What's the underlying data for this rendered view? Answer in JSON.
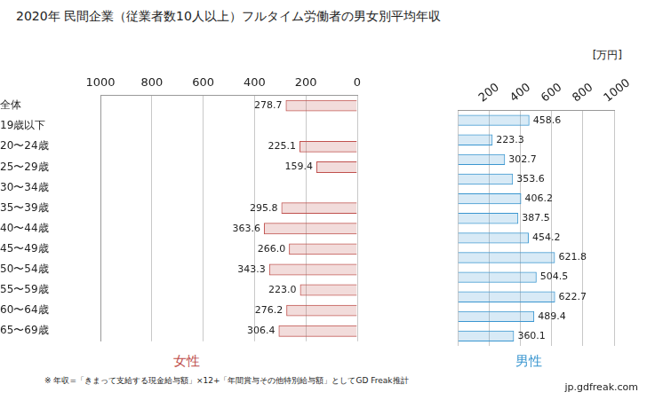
{
  "chart_data": {
    "type": "bar",
    "orientation": "horizontal",
    "title": "2020年 民間企業（従業者数10人以上）フルタイム労働者の男女別平均年収",
    "unit": "[万円]",
    "annotations": [
      "※ 年収=「きまって支給する現金給与額」×12+「年間賞与その他特別給与額」としてGD Freak推計",
      "jp.gdfreak.com"
    ],
    "categories": [
      "全体",
      "19歳以下",
      "20〜24歳",
      "25〜29歳",
      "30〜34歳",
      "35〜39歳",
      "40〜44歳",
      "45〜49歳",
      "50〜54歳",
      "55〜59歳",
      "60〜64歳",
      "65〜69歳"
    ],
    "series": [
      {
        "name": "女性",
        "color": "#c0504d",
        "values": [
          278.7,
          null,
          225.1,
          159.4,
          null,
          295.8,
          363.6,
          266.0,
          343.3,
          223.0,
          276.2,
          306.4
        ],
        "value_labels": [
          "278.7",
          null,
          "225.1",
          "159.4",
          null,
          "295.8",
          "363.6",
          "266.0",
          "343.3",
          "223.0",
          "276.2",
          "306.4"
        ]
      },
      {
        "name": "男性",
        "color": "#3a96d0",
        "values": [
          458.6,
          223.3,
          302.7,
          353.6,
          406.2,
          387.5,
          454.2,
          621.8,
          504.5,
          622.7,
          489.4,
          360.1
        ],
        "value_labels": [
          "458.6",
          "223.3",
          "302.7",
          "353.6",
          "406.2",
          "387.5",
          "454.2",
          "621.8",
          "504.5",
          "622.7",
          "489.4",
          "360.1"
        ]
      }
    ],
    "xlim": [
      0,
      1000
    ],
    "xticks": [
      0,
      200,
      400,
      600,
      800,
      1000
    ],
    "grid": true,
    "data_labels": true
  }
}
